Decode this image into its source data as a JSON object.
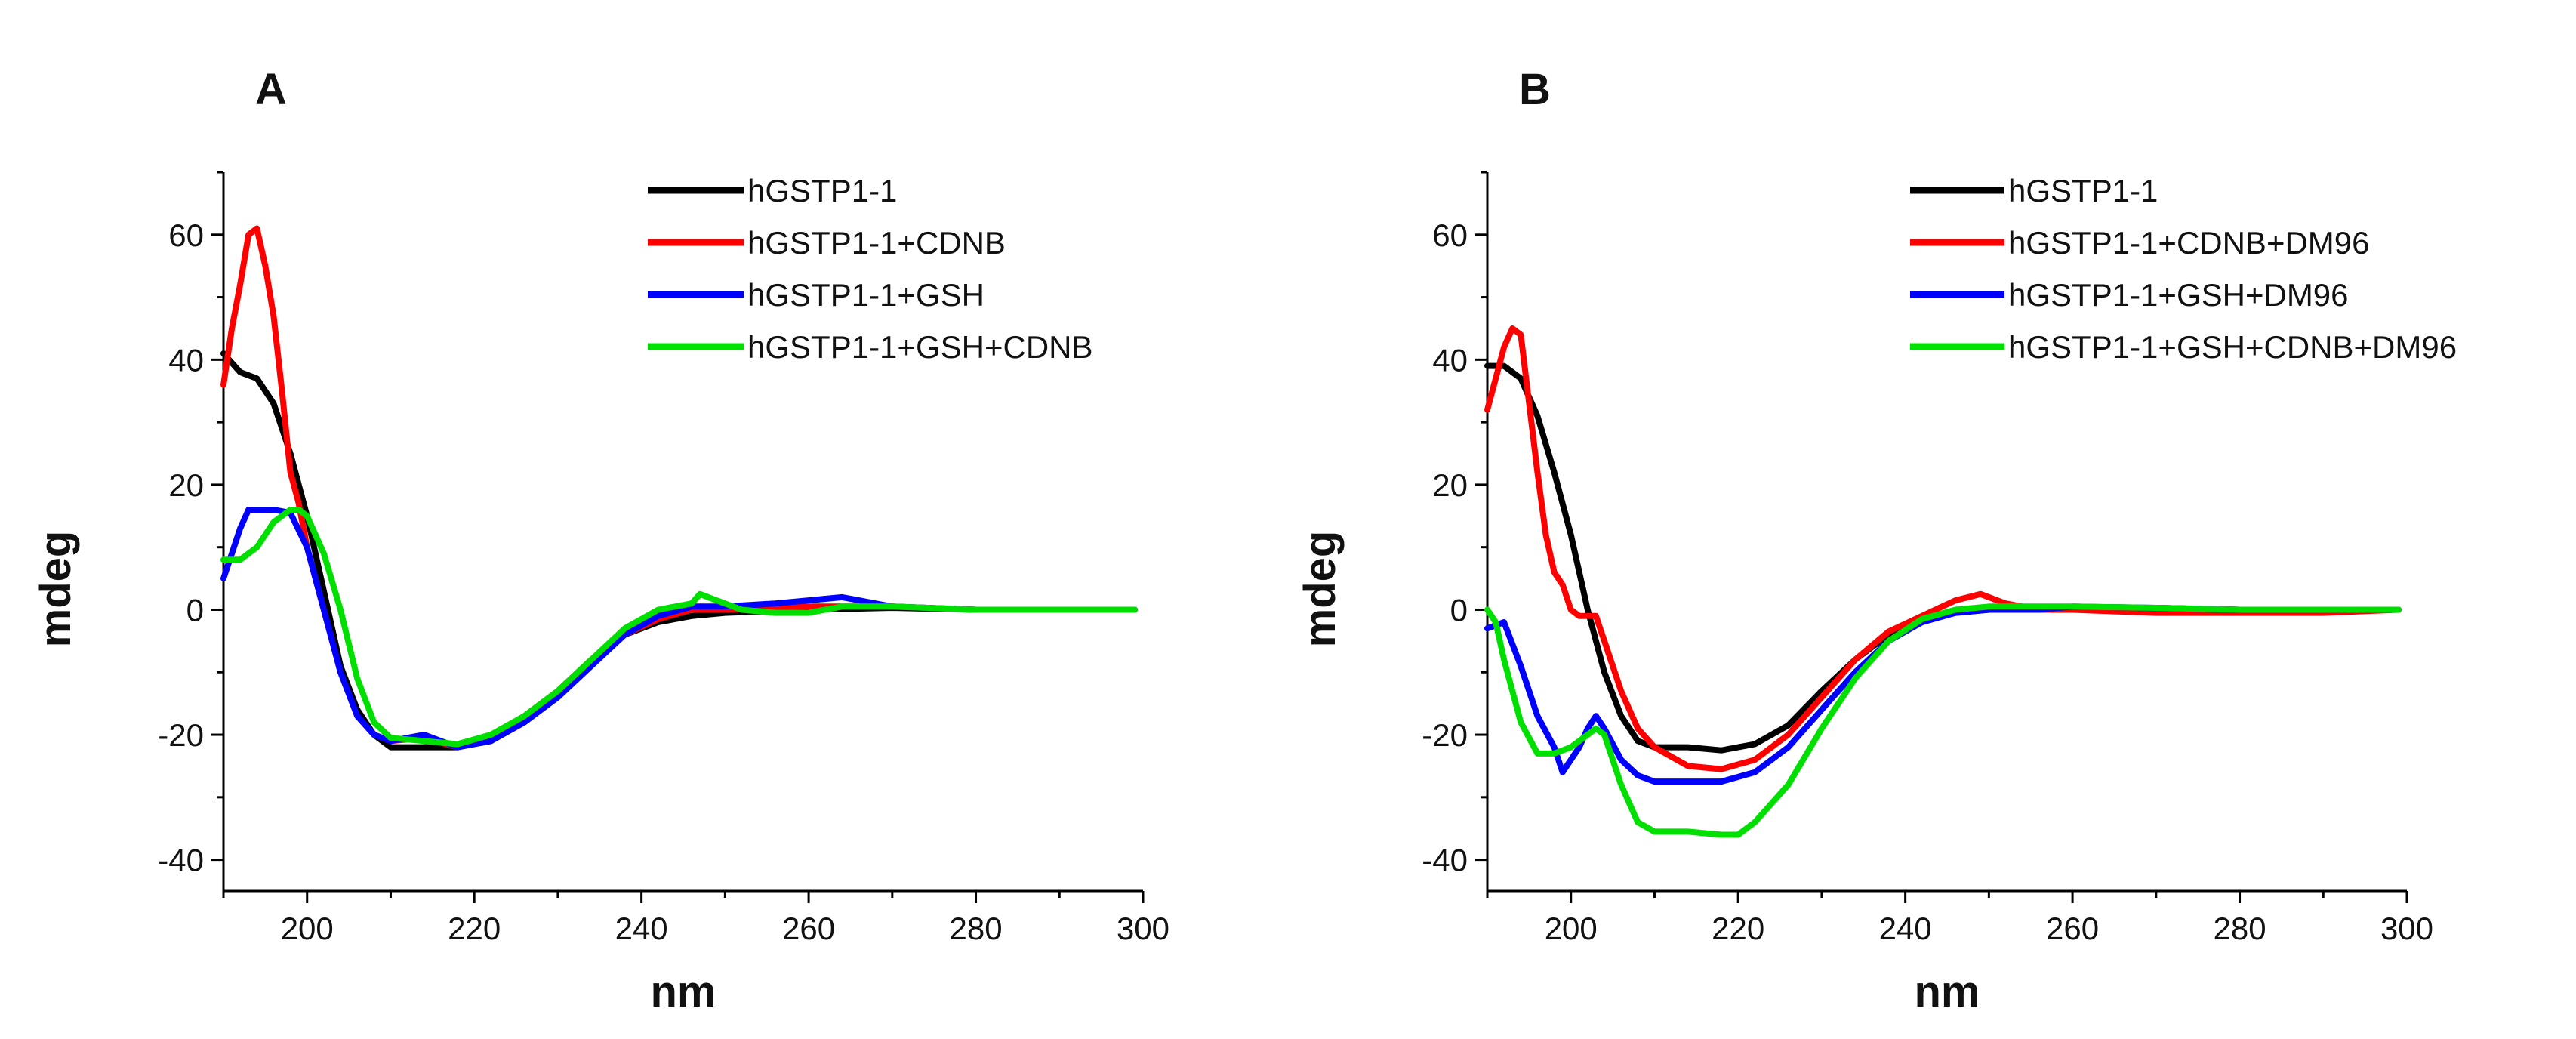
{
  "chart_data": [
    {
      "type": "line",
      "panel": "A",
      "title": "",
      "xlabel": "nm",
      "ylabel": "mdeg",
      "xlim": [
        190,
        300
      ],
      "ylim": [
        -45,
        70
      ],
      "xticks": [
        200,
        220,
        240,
        260,
        280,
        300
      ],
      "yticks": [
        -40,
        -20,
        0,
        20,
        40,
        60
      ],
      "legend_position": "top-right",
      "series": [
        {
          "name": "hGSTP1-1",
          "color": "#000000",
          "x": [
            190,
            192,
            194,
            196,
            198,
            200,
            202,
            204,
            206,
            208,
            210,
            214,
            218,
            222,
            226,
            230,
            234,
            238,
            242,
            246,
            250,
            260,
            270,
            280,
            290,
            299
          ],
          "y": [
            41,
            38,
            37,
            33,
            25,
            15,
            3,
            -9,
            -16,
            -20,
            -22,
            -22,
            -22,
            -21,
            -18,
            -13,
            -8,
            -4,
            -2,
            -1,
            -0.5,
            0,
            0.3,
            0,
            0,
            0
          ]
        },
        {
          "name": "hGSTP1-1+CDNB",
          "color": "#ff0000",
          "x": [
            190,
            191,
            192,
            193,
            194,
            195,
            196,
            197,
            198,
            199,
            200,
            202,
            204,
            206,
            208,
            210,
            214,
            218,
            222,
            226,
            230,
            234,
            238,
            242,
            246,
            250,
            260,
            270,
            280,
            290,
            299
          ],
          "y": [
            36,
            45,
            52,
            60,
            61,
            55,
            47,
            35,
            22,
            17,
            10,
            0,
            -10,
            -17,
            -20,
            -21,
            -20.5,
            -22,
            -20.5,
            -17,
            -13,
            -8,
            -4,
            -1.5,
            0,
            0,
            0.5,
            0.5,
            0,
            0,
            0
          ]
        },
        {
          "name": "hGSTP1-1+GSH",
          "color": "#0000ff",
          "x": [
            190,
            191,
            192,
            193,
            194,
            196,
            198,
            200,
            202,
            204,
            206,
            208,
            210,
            214,
            218,
            222,
            226,
            230,
            234,
            238,
            242,
            246,
            250,
            256,
            260,
            264,
            270,
            280,
            290,
            299
          ],
          "y": [
            5,
            9,
            13,
            16,
            16,
            16,
            15.5,
            10,
            0,
            -10,
            -17,
            -20,
            -21,
            -20,
            -22,
            -21,
            -18,
            -14,
            -9,
            -4,
            -1,
            0.5,
            0.5,
            1,
            1.5,
            2,
            0.5,
            0,
            0,
            0
          ]
        },
        {
          "name": "hGSTP1-1+GSH+CDNB",
          "color": "#00e000",
          "x": [
            190,
            192,
            194,
            196,
            198,
            199,
            200,
            202,
            204,
            206,
            208,
            210,
            214,
            218,
            222,
            226,
            230,
            234,
            238,
            242,
            246,
            247,
            249,
            252,
            256,
            260,
            264,
            270,
            280,
            290,
            299
          ],
          "y": [
            8,
            8,
            10,
            14,
            16,
            16,
            15,
            9,
            0,
            -11,
            -18,
            -20.5,
            -21,
            -21.5,
            -20,
            -17,
            -13,
            -8,
            -3,
            0,
            1,
            2.5,
            1.5,
            0,
            -0.5,
            -0.5,
            0.5,
            0.5,
            0,
            0,
            0
          ]
        }
      ]
    },
    {
      "type": "line",
      "panel": "B",
      "title": "",
      "xlabel": "nm",
      "ylabel": "mdeg",
      "xlim": [
        190,
        300
      ],
      "ylim": [
        -45,
        70
      ],
      "xticks": [
        200,
        220,
        240,
        260,
        280,
        300
      ],
      "yticks": [
        -40,
        -20,
        0,
        20,
        40,
        60
      ],
      "legend_position": "top-right",
      "series": [
        {
          "name": "hGSTP1-1",
          "color": "#000000",
          "x": [
            190,
            192,
            194,
            196,
            198,
            200,
            202,
            204,
            206,
            208,
            210,
            214,
            218,
            222,
            226,
            230,
            234,
            238,
            242,
            246,
            250,
            260,
            270,
            280,
            290,
            299
          ],
          "y": [
            39,
            39,
            37,
            31,
            22,
            12,
            0,
            -10,
            -17,
            -21,
            -22,
            -22,
            -22.5,
            -21.5,
            -18.5,
            -13,
            -8,
            -4,
            -1.5,
            -0.5,
            0,
            0,
            0.3,
            0,
            0,
            0
          ]
        },
        {
          "name": "hGSTP1-1+CDNB+DM96",
          "color": "#ff0000",
          "x": [
            190,
            191,
            192,
            193,
            194,
            195,
            196,
            197,
            198,
            199,
            200,
            201,
            202,
            203,
            204,
            206,
            208,
            210,
            214,
            218,
            222,
            226,
            230,
            234,
            238,
            242,
            246,
            249,
            252,
            256,
            260,
            270,
            280,
            290,
            299
          ],
          "y": [
            32,
            37,
            42,
            45,
            44,
            33,
            22,
            12,
            6,
            4,
            0,
            -1,
            -1,
            -1,
            -5,
            -13,
            -19,
            -22,
            -25,
            -25.5,
            -24,
            -20,
            -14,
            -8,
            -3.5,
            -1,
            1.5,
            2.5,
            1,
            0,
            0,
            -0.5,
            -0.5,
            -0.5,
            0
          ]
        },
        {
          "name": "hGSTP1-1+GSH+DM96",
          "color": "#0000ff",
          "x": [
            190,
            192,
            194,
            196,
            198,
            199,
            200,
            201,
            202,
            203,
            204,
            206,
            208,
            210,
            214,
            218,
            222,
            226,
            230,
            234,
            238,
            242,
            246,
            250,
            256,
            260,
            270,
            280,
            290,
            299
          ],
          "y": [
            -3,
            -2,
            -9,
            -17,
            -22,
            -26,
            -24,
            -22,
            -19,
            -17,
            -19,
            -24,
            -26.5,
            -27.5,
            -27.5,
            -27.5,
            -26,
            -22,
            -16,
            -10,
            -5,
            -2,
            -0.5,
            0,
            0,
            0.5,
            0.3,
            0,
            0,
            0
          ]
        },
        {
          "name": "hGSTP1-1+GSH+CDNB+DM96",
          "color": "#00e000",
          "x": [
            190,
            191,
            192,
            194,
            196,
            198,
            200,
            202,
            203,
            204,
            206,
            208,
            210,
            214,
            218,
            220,
            222,
            226,
            230,
            234,
            238,
            242,
            246,
            250,
            256,
            260,
            270,
            280,
            290,
            299
          ],
          "y": [
            0,
            -2,
            -8,
            -18,
            -23,
            -23,
            -22,
            -20,
            -19,
            -20,
            -28,
            -34,
            -35.5,
            -35.5,
            -36,
            -36,
            -34,
            -28,
            -19,
            -11,
            -5,
            -1.5,
            0,
            0.5,
            0.5,
            0.5,
            0.3,
            0,
            0,
            0
          ]
        }
      ]
    }
  ]
}
